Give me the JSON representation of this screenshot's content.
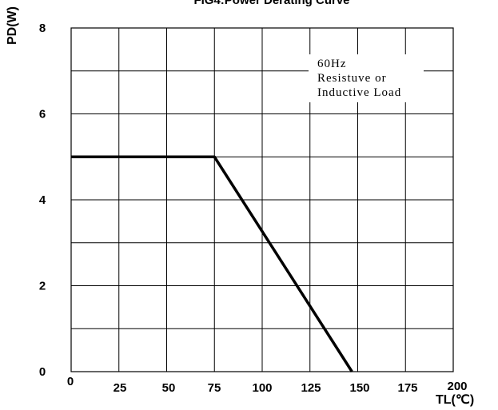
{
  "chart_data": {
    "type": "line",
    "title": "FIG4:Power Derating Curve",
    "xlabel": "TL(℃)",
    "ylabel": "PD(W)",
    "xlim": [
      0,
      200
    ],
    "ylim": [
      0,
      8
    ],
    "x_ticks": [
      "0",
      "25",
      "50",
      "75",
      "100",
      "125",
      "150",
      "175",
      "200"
    ],
    "y_ticks": [
      "0",
      "2",
      "4",
      "6",
      "8"
    ],
    "grid": true,
    "series": [
      {
        "x": [
          0,
          75,
          147
        ],
        "y": [
          5,
          5,
          0
        ]
      }
    ],
    "annotations": [
      "60Hz",
      "Resistuve or",
      "Inductive Load"
    ]
  }
}
